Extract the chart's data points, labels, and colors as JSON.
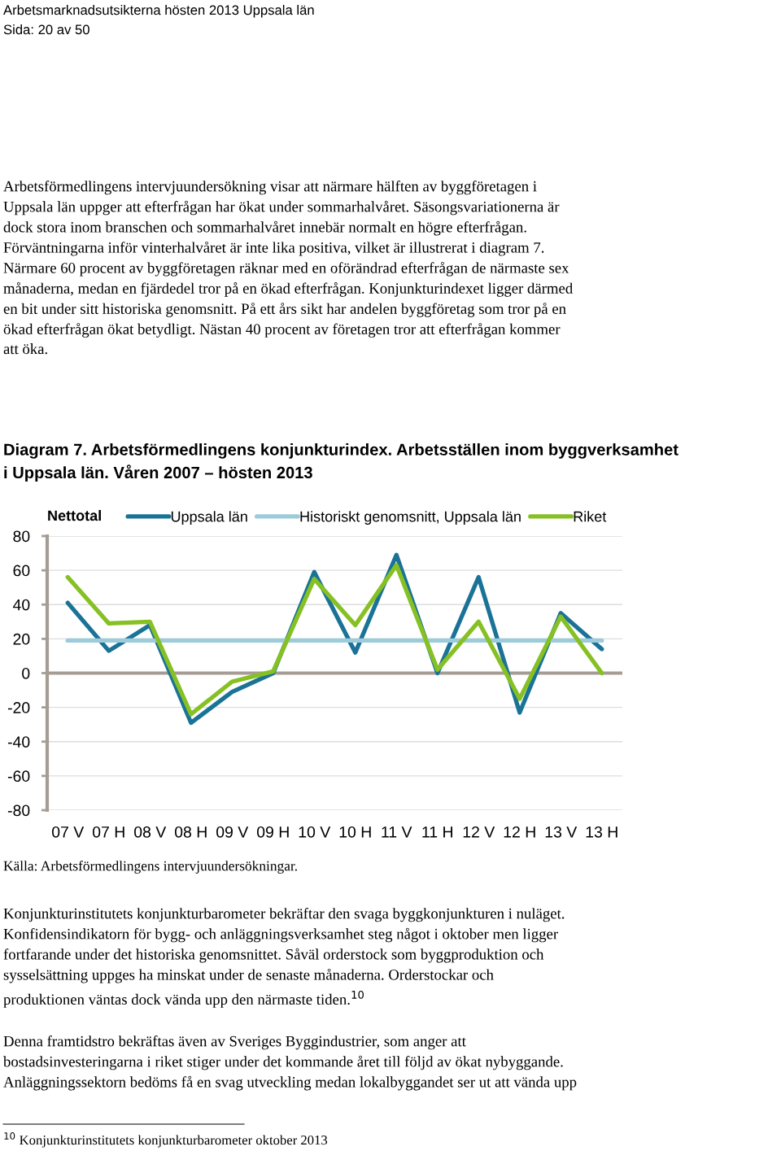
{
  "chart_data": {
    "type": "line",
    "title": "Diagram 7. Arbetsförmedlingens konjunkturindex. Arbetsställen inom byggverksamhet\ni Uppsala län. Våren 2007 – hösten 2013",
    "ylabel": "Nettotal",
    "categories": [
      "07 V",
      "07 H",
      "08 V",
      "08 H",
      "09 V",
      "09 H",
      "10 V",
      "10 H",
      "11 V",
      "11 H",
      "12 V",
      "12 H",
      "13 V",
      "13 H"
    ],
    "series": [
      {
        "name": "Uppsala län",
        "color": "#1a7397",
        "values": [
          41,
          13,
          28,
          -29,
          -11,
          0,
          59,
          12,
          69,
          0,
          56,
          -23,
          35,
          14
        ]
      },
      {
        "name": "Historiskt genomsnitt, Uppsala län",
        "color": "#9ccbda",
        "values": [
          19,
          19,
          19,
          19,
          19,
          19,
          19,
          19,
          19,
          19,
          19,
          19,
          19,
          19
        ]
      },
      {
        "name": "Riket",
        "color": "#86c023",
        "values": [
          56,
          29,
          30,
          -24,
          -5,
          1,
          55,
          28,
          63,
          2,
          30,
          -15,
          33,
          0
        ]
      }
    ],
    "ylim": [
      -80,
      80
    ],
    "yticks": [
      -80,
      -60,
      -40,
      -20,
      0,
      20,
      40,
      60,
      80
    ],
    "ref_lines": [
      {
        "axis": "y",
        "value": 0,
        "color": "#a59d95"
      }
    ],
    "grid": "y",
    "legend": "top",
    "marker": "none",
    "line_style": "solid",
    "annotations": [
      "Arbetsmarknadsutsikterna hösten 2013 Uppsala län",
      "Sida: 20 av 50",
      "Arbetsförmedlingens intervjuundersökning visar att närmare hälften av byggföretagen i\nUppsala län uppger att efterfrågan har ökat under sommarhalvåret. Säsongsvariationerna är\ndock stora inom branschen och sommarhalvåret innebär normalt en högre efterfrågan.\nFörväntningarna inför vinterhalvåret är inte lika positiva, vilket är illustrerat i diagram 7.\nNärmare 60 procent av byggföretagen räknar med en oförändrad efterfrågan de närmaste sex\nmånaderna, medan en fjärdedel tror på en ökad efterfrågan. Konjunkturindexet ligger därmed\nen bit under sitt historiska genomsnitt. På ett års sikt har andelen byggföretag som tror på en\nökad efterfrågan ökat betydligt. Nästan 40 procent av företagen tror att efterfrågan kommer\natt öka.",
      "Källa: Arbetsförmedlingens intervjuundersökningar.",
      "Konjunkturinstitutets konjunkturbarometer bekräftar den svaga byggkonjunkturen i nuläget.\nKonfidensindikatorn för bygg- och anläggningsverksamhet steg något i oktober men ligger\nfortfarande under det historiska genomsnittet. Såväl orderstock som byggproduktion och\nsysselsättning uppges ha minskat under de senaste månaderna. Orderstockar och\nproduktionen väntas dock vända upp den närmaste tiden.$^{10}$",
      "Denna framtidstro bekräftas även av Sveriges Byggindustrier, som anger att\nbostadsinvesteringarna i riket stiger under det kommande året till följd av ökat nybyggande.\nAnläggningssektorn bedöms få en svag utveckling medan lokalbyggandet ser ut att vända upp",
      "$^{10}$ Konjunkturinstitutets konjunkturbarometer oktober 2013"
    ]
  }
}
